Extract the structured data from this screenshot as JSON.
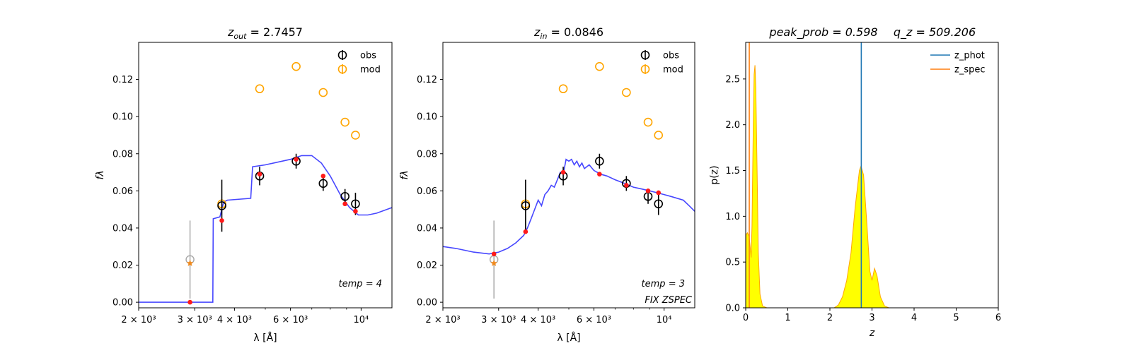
{
  "chart_data": [
    {
      "type": "scatter",
      "title": {
        "sym": "z",
        "sub": "out",
        "value": "2.7457"
      },
      "xlabel": "λ [Å]",
      "ylabel": "fλ",
      "xscale": "log",
      "xlim": [
        2000,
        12500
      ],
      "ylim": [
        -0.003,
        0.14
      ],
      "xticks": [
        {
          "v": 2000,
          "label": "2 × 10³"
        },
        {
          "v": 3000,
          "label": "3 × 10³"
        },
        {
          "v": 4000,
          "label": "4 × 10³"
        },
        {
          "v": 6000,
          "label": "6 × 10³"
        },
        {
          "v": 10000,
          "label": "10⁴"
        }
      ],
      "yticks": [
        0.0,
        0.02,
        0.04,
        0.06,
        0.08,
        0.1,
        0.12
      ],
      "legend": {
        "placement": "top-right",
        "entries": [
          "obs",
          "mod"
        ]
      },
      "annotations": [
        "temp = 4"
      ],
      "colors": {
        "obs": "#000000",
        "mod": "#ffa500",
        "template": "#3333ff",
        "model_phot": "#ff1a1a",
        "excluded": "#aaaaaa"
      },
      "template_curve": [
        [
          2000,
          0
        ],
        [
          3200,
          0
        ],
        [
          3420,
          0
        ],
        [
          3430,
          0.045
        ],
        [
          3600,
          0.046
        ],
        [
          3700,
          0.054
        ],
        [
          3800,
          0.055
        ],
        [
          4500,
          0.056
        ],
        [
          4560,
          0.073
        ],
        [
          5000,
          0.074
        ],
        [
          6000,
          0.077
        ],
        [
          6500,
          0.079
        ],
        [
          7000,
          0.079
        ],
        [
          7500,
          0.075
        ],
        [
          8000,
          0.068
        ],
        [
          8600,
          0.058
        ],
        [
          9200,
          0.051
        ],
        [
          9800,
          0.047
        ],
        [
          10500,
          0.047
        ],
        [
          11200,
          0.048
        ],
        [
          12500,
          0.051
        ]
      ],
      "obs": [
        {
          "x": 3650,
          "y": 0.052,
          "err": 0.014
        },
        {
          "x": 4800,
          "y": 0.068,
          "err": 0.005
        },
        {
          "x": 6250,
          "y": 0.076,
          "err": 0.004
        },
        {
          "x": 7600,
          "y": 0.064,
          "err": 0.004
        },
        {
          "x": 8900,
          "y": 0.057,
          "err": 0.004
        },
        {
          "x": 9600,
          "y": 0.053,
          "err": 0.006
        }
      ],
      "obs_excluded": [
        {
          "x": 2900,
          "y": 0.023,
          "err": 0.021
        }
      ],
      "mod": [
        {
          "x": 3650,
          "y": 0.053
        },
        {
          "x": 4800,
          "y": 0.115
        },
        {
          "x": 6250,
          "y": 0.127
        },
        {
          "x": 7600,
          "y": 0.113
        },
        {
          "x": 8900,
          "y": 0.097
        },
        {
          "x": 9600,
          "y": 0.09
        }
      ],
      "mod_excluded": [
        {
          "x": 2900,
          "y": 0.021
        }
      ],
      "model_phot": [
        {
          "x": 2900,
          "y": 0.0
        },
        {
          "x": 3650,
          "y": 0.044
        },
        {
          "x": 4800,
          "y": 0.069
        },
        {
          "x": 6250,
          "y": 0.077
        },
        {
          "x": 7600,
          "y": 0.068
        },
        {
          "x": 8900,
          "y": 0.053
        },
        {
          "x": 9600,
          "y": 0.049
        }
      ]
    },
    {
      "type": "scatter",
      "title": {
        "sym": "z",
        "sub": "in",
        "value": "0.0846"
      },
      "xlabel": "λ [Å]",
      "ylabel": "fλ",
      "xscale": "log",
      "xlim": [
        2000,
        12500
      ],
      "ylim": [
        -0.003,
        0.14
      ],
      "xticks": [
        {
          "v": 2000,
          "label": "2 × 10³"
        },
        {
          "v": 3000,
          "label": "3 × 10³"
        },
        {
          "v": 4000,
          "label": "4 × 10³"
        },
        {
          "v": 6000,
          "label": "6 × 10³"
        },
        {
          "v": 10000,
          "label": "10⁴"
        }
      ],
      "yticks": [
        0.0,
        0.02,
        0.04,
        0.06,
        0.08,
        0.1,
        0.12
      ],
      "legend": {
        "placement": "top-right",
        "entries": [
          "obs",
          "mod"
        ]
      },
      "annotations": [
        "temp = 3",
        "FIX ZSPEC"
      ],
      "colors": {
        "obs": "#000000",
        "mod": "#ffa500",
        "template": "#3333ff",
        "model_phot": "#ff1a1a",
        "excluded": "#aaaaaa"
      },
      "template_curve": [
        [
          2000,
          0.03
        ],
        [
          2200,
          0.029
        ],
        [
          2500,
          0.027
        ],
        [
          2800,
          0.026
        ],
        [
          3000,
          0.027
        ],
        [
          3200,
          0.029
        ],
        [
          3400,
          0.032
        ],
        [
          3600,
          0.036
        ],
        [
          3700,
          0.04
        ],
        [
          3800,
          0.045
        ],
        [
          3900,
          0.05
        ],
        [
          4000,
          0.055
        ],
        [
          4100,
          0.052
        ],
        [
          4200,
          0.058
        ],
        [
          4300,
          0.06
        ],
        [
          4400,
          0.063
        ],
        [
          4500,
          0.062
        ],
        [
          4600,
          0.066
        ],
        [
          4700,
          0.07
        ],
        [
          4800,
          0.069
        ],
        [
          4900,
          0.077
        ],
        [
          5000,
          0.076
        ],
        [
          5100,
          0.077
        ],
        [
          5200,
          0.074
        ],
        [
          5300,
          0.076
        ],
        [
          5400,
          0.073
        ],
        [
          5500,
          0.075
        ],
        [
          5600,
          0.072
        ],
        [
          5800,
          0.074
        ],
        [
          6000,
          0.071
        ],
        [
          6300,
          0.069
        ],
        [
          6600,
          0.068
        ],
        [
          7000,
          0.066
        ],
        [
          7500,
          0.064
        ],
        [
          8000,
          0.062
        ],
        [
          8500,
          0.061
        ],
        [
          9000,
          0.06
        ],
        [
          9500,
          0.059
        ],
        [
          10000,
          0.058
        ],
        [
          10500,
          0.057
        ],
        [
          11500,
          0.055
        ],
        [
          12000,
          0.052
        ],
        [
          12500,
          0.049
        ]
      ],
      "obs": [
        {
          "x": 3650,
          "y": 0.052,
          "err": 0.014
        },
        {
          "x": 4800,
          "y": 0.068,
          "err": 0.005
        },
        {
          "x": 6250,
          "y": 0.076,
          "err": 0.004
        },
        {
          "x": 7600,
          "y": 0.064,
          "err": 0.004
        },
        {
          "x": 8900,
          "y": 0.057,
          "err": 0.004
        },
        {
          "x": 9600,
          "y": 0.053,
          "err": 0.006
        }
      ],
      "obs_excluded": [
        {
          "x": 2900,
          "y": 0.023,
          "err": 0.021
        }
      ],
      "mod": [
        {
          "x": 3650,
          "y": 0.053
        },
        {
          "x": 4800,
          "y": 0.115
        },
        {
          "x": 6250,
          "y": 0.127
        },
        {
          "x": 7600,
          "y": 0.113
        },
        {
          "x": 8900,
          "y": 0.097
        },
        {
          "x": 9600,
          "y": 0.09
        }
      ],
      "mod_excluded": [
        {
          "x": 2900,
          "y": 0.021
        }
      ],
      "model_phot": [
        {
          "x": 2900,
          "y": 0.026
        },
        {
          "x": 3650,
          "y": 0.038
        },
        {
          "x": 4800,
          "y": 0.07
        },
        {
          "x": 6250,
          "y": 0.069
        },
        {
          "x": 7600,
          "y": 0.063
        },
        {
          "x": 8900,
          "y": 0.06
        },
        {
          "x": 9600,
          "y": 0.059
        }
      ]
    },
    {
      "type": "area",
      "title": {
        "left": "peak_prob = 0.598",
        "right": "q_z = 509.206"
      },
      "xlabel": "z",
      "ylabel": "p(z)",
      "xlim": [
        0,
        6
      ],
      "ylim": [
        0,
        2.9
      ],
      "xticks": [
        0,
        1,
        2,
        3,
        4,
        5,
        6
      ],
      "yticks": [
        0.0,
        0.5,
        1.0,
        1.5,
        2.0,
        2.5
      ],
      "legend": {
        "placement": "top-right",
        "entries": [
          "z_phot",
          "z_spec"
        ]
      },
      "colors": {
        "z_phot": "#1f77b4",
        "z_spec": "#ff7f0e",
        "fill": "#ffff00",
        "edge": "#ffa500"
      },
      "z_phot": 2.7457,
      "z_spec": 0.0846,
      "pdf": [
        [
          0,
          0
        ],
        [
          0.01,
          0.8
        ],
        [
          0.04,
          0.82
        ],
        [
          0.08,
          0.78
        ],
        [
          0.11,
          0.65
        ],
        [
          0.13,
          0.55
        ],
        [
          0.15,
          0.9
        ],
        [
          0.18,
          2.0
        ],
        [
          0.2,
          2.55
        ],
        [
          0.22,
          2.65
        ],
        [
          0.24,
          2.4
        ],
        [
          0.27,
          1.5
        ],
        [
          0.3,
          0.6
        ],
        [
          0.34,
          0.15
        ],
        [
          0.4,
          0.02
        ],
        [
          0.5,
          0
        ],
        [
          2.1,
          0
        ],
        [
          2.2,
          0.03
        ],
        [
          2.3,
          0.12
        ],
        [
          2.4,
          0.3
        ],
        [
          2.5,
          0.6
        ],
        [
          2.6,
          1.1
        ],
        [
          2.7,
          1.5
        ],
        [
          2.74,
          1.55
        ],
        [
          2.8,
          1.45
        ],
        [
          2.88,
          0.9
        ],
        [
          2.95,
          0.4
        ],
        [
          3.0,
          0.3
        ],
        [
          3.06,
          0.43
        ],
        [
          3.12,
          0.35
        ],
        [
          3.2,
          0.12
        ],
        [
          3.3,
          0.02
        ],
        [
          3.4,
          0
        ],
        [
          5.0,
          0
        ]
      ]
    }
  ]
}
